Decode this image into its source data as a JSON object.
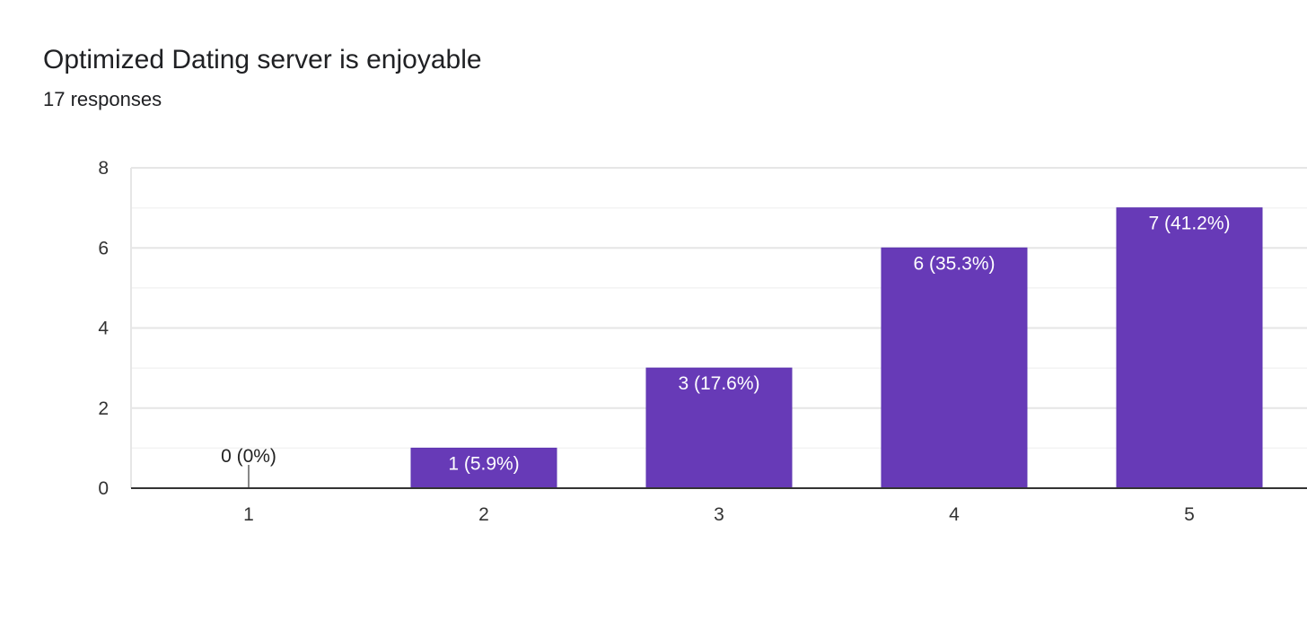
{
  "header": {
    "title": "Optimized Dating server is enjoyable",
    "responses": "17 responses"
  },
  "chart_data": {
    "type": "bar",
    "categories": [
      "1",
      "2",
      "3",
      "4",
      "5"
    ],
    "values": [
      0,
      1,
      3,
      6,
      7
    ],
    "data_labels": [
      "0 (0%)",
      "1 (5.9%)",
      "3 (17.6%)",
      "6 (35.3%)",
      "7 (41.2%)"
    ],
    "y_ticks": [
      0,
      2,
      4,
      6,
      8
    ],
    "ylim": [
      0,
      8
    ],
    "grid": true,
    "legend": "none",
    "colors": {
      "bar": "#673ab7",
      "bar_border": "#5e35b1",
      "grid_major": "#e6e6e6",
      "grid_minor": "#f3f3f3",
      "axis": "#333333",
      "inside_label": "#ffffff",
      "outside_label": "#222222"
    }
  }
}
